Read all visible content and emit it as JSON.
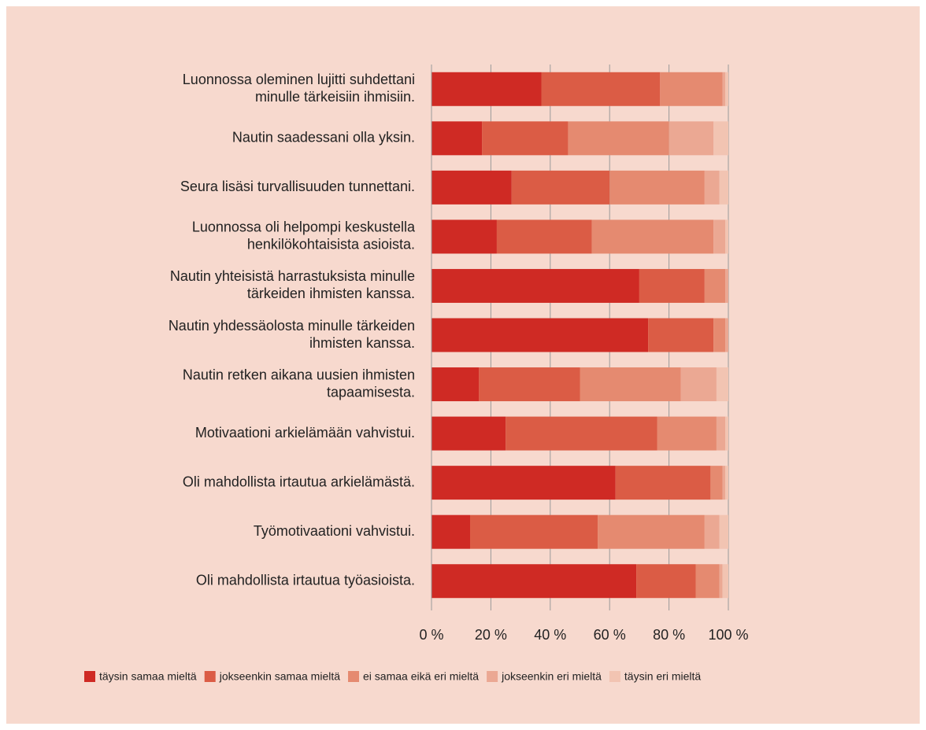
{
  "chart_data": {
    "type": "stacked-bar-horizontal",
    "categories": [
      [
        "Luonnossa oleminen lujitti suhdettani",
        "minulle tärkeisiin ihmisiin."
      ],
      [
        "Nautin saadessani olla yksin."
      ],
      [
        "Seura lisäsi turvallisuuden tunnettani."
      ],
      [
        "Luonnossa oli helpompi keskustella",
        "henkilökohtaisista asioista."
      ],
      [
        "Nautin yhteisistä harrastuksista minulle",
        "tärkeiden ihmisten kanssa."
      ],
      [
        "Nautin yhdessäolosta minulle tärkeiden",
        "ihmisten kanssa."
      ],
      [
        "Nautin retken aikana uusien ihmisten",
        "tapaamisesta."
      ],
      [
        "Motivaationi arkielämään vahvistui."
      ],
      [
        "Oli mahdollista irtautua arkielämästä."
      ],
      [
        "Työmotivaationi vahvistui."
      ],
      [
        "Oli mahdollista irtautua työasioista."
      ]
    ],
    "series": [
      {
        "name": "täysin samaa mieltä",
        "color": "#cf2a24",
        "values": [
          37,
          17,
          27,
          22,
          70,
          73,
          16,
          25,
          62,
          13,
          69
        ]
      },
      {
        "name": "jokseenkin samaa mieltä",
        "color": "#db5c45",
        "values": [
          40,
          29,
          33,
          32,
          22,
          22,
          34,
          51,
          32,
          43,
          20
        ]
      },
      {
        "name": "ei samaa eikä eri mieltä",
        "color": "#e58a70",
        "values": [
          21,
          34,
          32,
          41,
          7,
          4,
          34,
          20,
          4,
          36,
          8
        ]
      },
      {
        "name": "jokseenkin eri mieltä",
        "color": "#eba893",
        "values": [
          1,
          15,
          5,
          4,
          1,
          1,
          12,
          3,
          1,
          5,
          1
        ]
      },
      {
        "name": "täysin eri mieltä",
        "color": "#f2c4b2",
        "values": [
          1,
          5,
          3,
          1,
          0,
          0,
          4,
          1,
          1,
          3,
          2
        ]
      }
    ],
    "xlim": [
      0,
      100
    ],
    "xticks": [
      {
        "value": 0,
        "label": "0 %"
      },
      {
        "value": 20,
        "label": "20 %"
      },
      {
        "value": 40,
        "label": "40 %"
      },
      {
        "value": 60,
        "label": "60 %"
      },
      {
        "value": 80,
        "label": "80 %"
      },
      {
        "value": 100,
        "label": "100 %"
      }
    ],
    "grid": true,
    "legend": "bottom"
  }
}
